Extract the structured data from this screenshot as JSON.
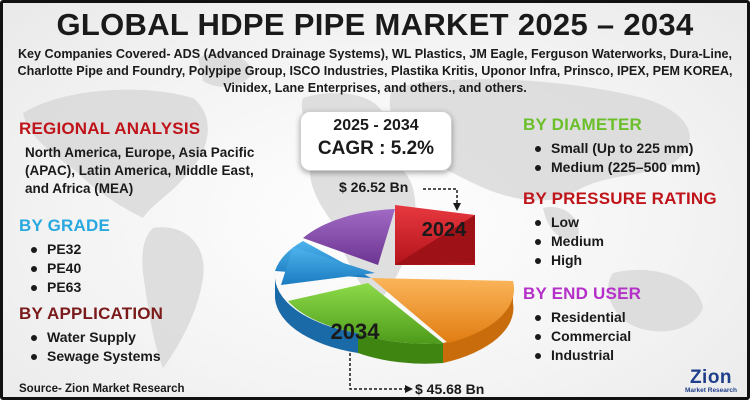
{
  "title": "GLOBAL HDPE PIPE MARKET 2025 – 2034",
  "companies": "Key Companies Covered- ADS (Advanced Drainage Systems), WL Plastics, JM Eagle, Ferguson Waterworks, Dura-Line, Charlotte Pipe and Foundry, Polypipe Group, ISCO Industries, Plastika Kritis, Uponor Infra, Prinsco, IPEX, PEM KOREA, Vinidex, Lane Enterprises, and others., and others.",
  "regional": {
    "heading": "REGIONAL ANALYSIS",
    "text": "North America, Europe, Asia Pacific (APAC), Latin America, Middle East, and Africa (MEA)"
  },
  "grade": {
    "heading": "BY GRADE",
    "items": [
      "PE32",
      "PE40",
      "PE63"
    ]
  },
  "application": {
    "heading": "BY APPLICATION",
    "items": [
      "Water Supply",
      "Sewage Systems"
    ]
  },
  "diameter": {
    "heading": "BY DIAMETER",
    "items": [
      "Small (Up to 225 mm)",
      "Medium (225–500 mm)"
    ]
  },
  "pressure": {
    "heading": "BY PRESSURE RATING",
    "items": [
      "Low",
      "Medium",
      "High"
    ]
  },
  "end_user": {
    "heading": "BY END USER",
    "items": [
      "Residential",
      "Commercial",
      "Industrial"
    ]
  },
  "cagr_box": {
    "years": "2025 - 2034",
    "cagr": "CAGR : 5.2%"
  },
  "pie": {
    "label_start": "2024",
    "label_end": "2034",
    "value_start": "$  26.52 Bn",
    "value_end": "$ 45.68 Bn",
    "colors": [
      "#d62027",
      "#8a4fb0",
      "#2f9fe0",
      "#66c22a",
      "#f79a28"
    ]
  },
  "source": "Source- Zion Market Research",
  "logo": {
    "name": "Zion",
    "tagline": "Market Research"
  },
  "colors": {
    "regional": "#c0141b",
    "grade": "#29a8e0",
    "application": "#7a1a1a",
    "diameter": "#6abf2a",
    "pressure": "#c0141b",
    "end_user": "#b52fc9"
  },
  "icons": [
    "world-map-icon",
    "bullet-icon",
    "arrow-icon",
    "pie-chart-icon"
  ]
}
